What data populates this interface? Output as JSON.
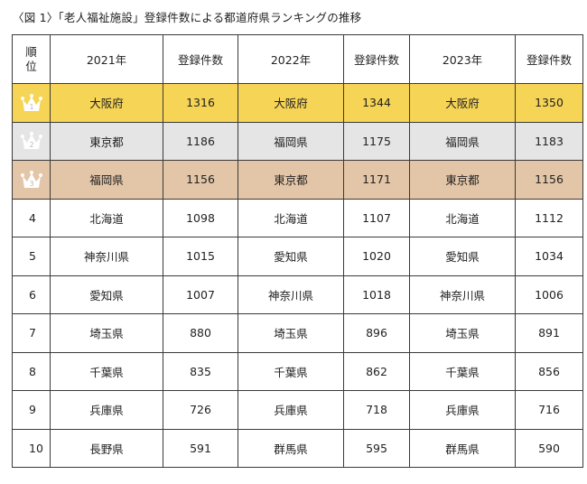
{
  "caption": "〈図 1〉「老人福祉施設」登録件数による都道府県ランキングの推移",
  "headers": {
    "rank_top": "順",
    "rank_bottom": "位",
    "y2021": "2021年",
    "count1": "登録件数",
    "y2022": "2022年",
    "count2": "登録件数",
    "y2023": "2023年",
    "count3": "登録件数"
  },
  "rows": [
    {
      "rank": "1",
      "p2021": "大阪府",
      "c2021": "1316",
      "p2022": "大阪府",
      "c2022": "1344",
      "p2023": "大阪府",
      "c2023": "1350"
    },
    {
      "rank": "2",
      "p2021": "東京都",
      "c2021": "1186",
      "p2022": "福岡県",
      "c2022": "1175",
      "p2023": "福岡県",
      "c2023": "1183"
    },
    {
      "rank": "3",
      "p2021": "福岡県",
      "c2021": "1156",
      "p2022": "東京都",
      "c2022": "1171",
      "p2023": "東京都",
      "c2023": "1156"
    },
    {
      "rank": "4",
      "p2021": "北海道",
      "c2021": "1098",
      "p2022": "北海道",
      "c2022": "1107",
      "p2023": "北海道",
      "c2023": "1112"
    },
    {
      "rank": "5",
      "p2021": "神奈川県",
      "c2021": "1015",
      "p2022": "愛知県",
      "c2022": "1020",
      "p2023": "愛知県",
      "c2023": "1034"
    },
    {
      "rank": "6",
      "p2021": "愛知県",
      "c2021": "1007",
      "p2022": "神奈川県",
      "c2022": "1018",
      "p2023": "神奈川県",
      "c2023": "1006"
    },
    {
      "rank": "7",
      "p2021": "埼玉県",
      "c2021": "880",
      "p2022": "埼玉県",
      "c2022": "896",
      "p2023": "埼玉県",
      "c2023": "891"
    },
    {
      "rank": "8",
      "p2021": "千葉県",
      "c2021": "835",
      "p2022": "千葉県",
      "c2022": "862",
      "p2023": "千葉県",
      "c2023": "856"
    },
    {
      "rank": "9",
      "p2021": "兵庫県",
      "c2021": "726",
      "p2022": "兵庫県",
      "c2022": "718",
      "p2023": "兵庫県",
      "c2023": "716"
    },
    {
      "rank": "10",
      "p2021": "長野県",
      "c2021": "591",
      "p2022": "群馬県",
      "c2022": "595",
      "p2023": "群馬県",
      "c2023": "590"
    }
  ],
  "medal_colors": {
    "gold": "#f6d456",
    "silver": "#e5e5e5",
    "bronze": "#e3c5a7"
  }
}
